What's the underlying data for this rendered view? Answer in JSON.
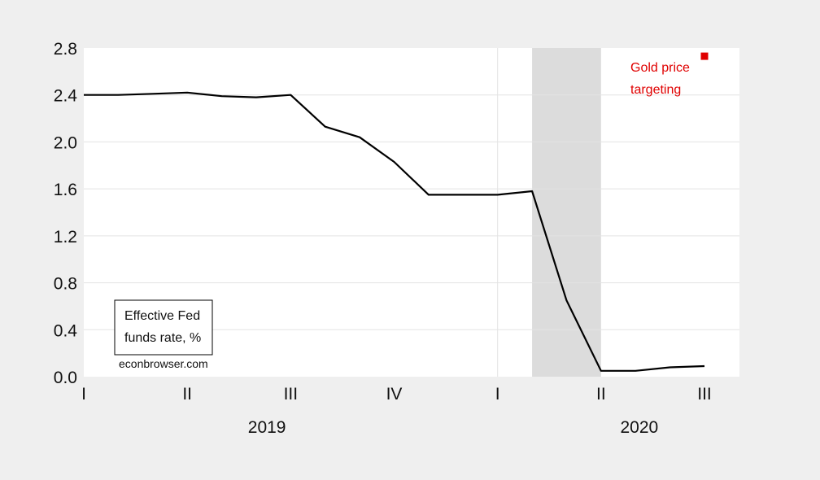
{
  "chart_data": {
    "type": "line",
    "ylim": [
      0,
      2.8
    ],
    "yticks": [
      "0.0",
      "0.4",
      "0.8",
      "1.2",
      "1.6",
      "2.0",
      "2.4",
      "2.8"
    ],
    "x_quarter_labels": [
      "I",
      "II",
      "III",
      "IV",
      "I",
      "II",
      "III"
    ],
    "x_year_labels": [
      "2019",
      "2020"
    ],
    "x_months": [
      "2019-01",
      "2019-02",
      "2019-03",
      "2019-04",
      "2019-05",
      "2019-06",
      "2019-07",
      "2019-08",
      "2019-09",
      "2019-10",
      "2019-11",
      "2019-12",
      "2020-01",
      "2020-02",
      "2020-03",
      "2020-04",
      "2020-05",
      "2020-06",
      "2020-07"
    ],
    "series": [
      {
        "name": "Effective Fed funds rate, %",
        "color": "#000000",
        "values": [
          2.4,
          2.4,
          2.41,
          2.42,
          2.39,
          2.38,
          2.4,
          2.13,
          2.04,
          1.83,
          1.55,
          1.55,
          1.55,
          1.58,
          0.65,
          0.05,
          0.05,
          0.08,
          0.09
        ]
      }
    ],
    "shaded_region": {
      "start": "2020-02",
      "end": "2020-04",
      "color": "#dcdcdc"
    },
    "annotation": {
      "line1": "Gold price",
      "line2": "targeting",
      "color": "#e00000",
      "marker_x": "2020-07",
      "marker_value": 2.73
    },
    "legend": {
      "line1": "Effective Fed",
      "line2": "funds rate, %",
      "placement": "bottom-left"
    },
    "source_note": "econbrowser.com"
  }
}
